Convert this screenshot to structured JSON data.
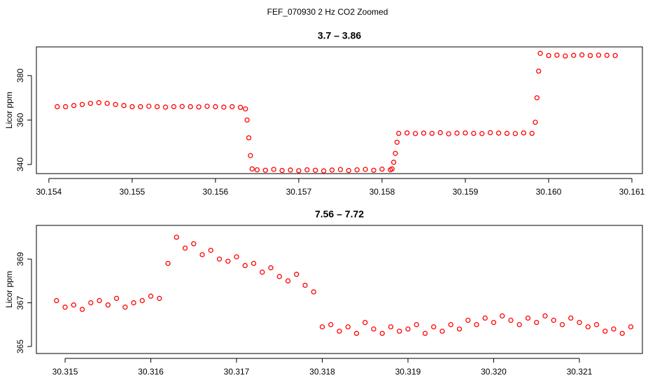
{
  "title": "FEF_070930  2 Hz CO2 Zoomed",
  "chart_data": [
    {
      "type": "scatter",
      "title": "3.7 – 3.86",
      "ylabel": "Licor ppm",
      "color": "#ff0000",
      "xlim": [
        30.15385,
        30.161126
      ],
      "ylim": [
        335.9,
        392.9
      ],
      "xticks": [
        30.154,
        30.155,
        30.156,
        30.157,
        30.158,
        30.159,
        {
          "value": 30.16,
          "label": "30.160"
        },
        30.161
      ],
      "yticks": [
        340,
        360,
        380
      ],
      "x": [
        30.1541,
        30.1542,
        30.1543,
        30.1544,
        30.1545,
        30.1546,
        30.1547,
        30.1548,
        30.1549,
        30.155,
        30.1551,
        30.1552,
        30.1553,
        30.1554,
        30.1555,
        30.1556,
        30.1557,
        30.1558,
        30.1559,
        30.156,
        30.1561,
        30.1562,
        30.1563,
        30.15636,
        30.15638,
        30.1564,
        30.15642,
        30.15644,
        30.1565,
        30.1566,
        30.1567,
        30.1568,
        30.1569,
        30.157,
        30.1571,
        30.1572,
        30.1573,
        30.1574,
        30.1575,
        30.1576,
        30.1577,
        30.1578,
        30.1579,
        30.158,
        30.1581,
        30.15812,
        30.15814,
        30.15816,
        30.15818,
        30.1582,
        30.1583,
        30.1584,
        30.1585,
        30.1586,
        30.1587,
        30.1588,
        30.1589,
        30.159,
        30.1591,
        30.1592,
        30.1593,
        30.1594,
        30.1595,
        30.1596,
        30.1597,
        30.1598,
        30.15984,
        30.15986,
        30.15988,
        30.1599,
        30.16,
        30.1601,
        30.1602,
        30.1603,
        30.1604,
        30.1605,
        30.1606,
        30.1607,
        30.1608
      ],
      "values": [
        366,
        366,
        366.5,
        367,
        367.5,
        367.8,
        367.5,
        367,
        366.5,
        366,
        366,
        366.2,
        366,
        365.8,
        366,
        366.1,
        366,
        365.9,
        366.2,
        366,
        365.8,
        366,
        365.7,
        365,
        360,
        352,
        344,
        338,
        337.6,
        337.4,
        337.8,
        337.3,
        337.5,
        337.2,
        337.6,
        337.4,
        337.1,
        337.5,
        337.7,
        337.3,
        337.6,
        337.8,
        337.4,
        337.9,
        337.6,
        338,
        341,
        345,
        350,
        354,
        354.2,
        353.9,
        354.1,
        354,
        354.3,
        353.8,
        354.1,
        354.2,
        354,
        353.9,
        354.3,
        354.1,
        354,
        353.9,
        354.2,
        354,
        359,
        370,
        382,
        390,
        389,
        389.2,
        388.8,
        389.1,
        389.3,
        389,
        389.2,
        389.1,
        389
      ]
    },
    {
      "type": "scatter",
      "title": "7.56 – 7.72",
      "ylabel": "Licor ppm",
      "color": "#ff0000",
      "xlim": [
        30.314665,
        30.321735
      ],
      "ylim": [
        364.68,
        370.54
      ],
      "xticks": [
        30.315,
        30.316,
        30.317,
        30.318,
        30.319,
        {
          "value": 30.32,
          "label": "30.320"
        },
        30.321
      ],
      "yticks": [
        365,
        367,
        369
      ],
      "x": [
        30.3149,
        30.315,
        30.3151,
        30.3152,
        30.3153,
        30.3154,
        30.3155,
        30.3156,
        30.3157,
        30.3158,
        30.3159,
        30.316,
        30.3161,
        30.3162,
        30.3163,
        30.3164,
        30.3165,
        30.3166,
        30.3167,
        30.3168,
        30.3169,
        30.317,
        30.3171,
        30.3172,
        30.3173,
        30.3174,
        30.3175,
        30.3176,
        30.3177,
        30.3178,
        30.3179,
        30.318,
        30.3181,
        30.3182,
        30.3183,
        30.3184,
        30.3185,
        30.3186,
        30.3187,
        30.3188,
        30.3189,
        30.319,
        30.3191,
        30.3192,
        30.3193,
        30.3194,
        30.3195,
        30.3196,
        30.3197,
        30.3198,
        30.3199,
        30.32,
        30.3201,
        30.3202,
        30.3203,
        30.3204,
        30.3205,
        30.3206,
        30.3207,
        30.3208,
        30.3209,
        30.321,
        30.3211,
        30.3212,
        30.3213,
        30.3214,
        30.3215,
        30.3216
      ],
      "values": [
        367.1,
        366.8,
        366.9,
        366.7,
        367,
        367.1,
        366.9,
        367.2,
        366.8,
        367,
        367.1,
        367.3,
        367.2,
        368.8,
        370,
        369.5,
        369.7,
        369.2,
        369.4,
        369,
        368.9,
        369.1,
        368.7,
        368.8,
        368.4,
        368.6,
        368.2,
        368,
        368.3,
        367.8,
        367.5,
        365.9,
        366,
        365.7,
        365.9,
        365.6,
        366.1,
        365.8,
        365.6,
        365.9,
        365.7,
        365.8,
        366,
        365.6,
        365.9,
        365.7,
        366,
        365.8,
        366.2,
        366,
        366.3,
        366.1,
        366.4,
        366.2,
        366,
        366.3,
        366.1,
        366.4,
        366.2,
        366,
        366.3,
        366.1,
        365.9,
        366,
        365.7,
        365.8,
        365.6,
        365.9
      ]
    }
  ]
}
